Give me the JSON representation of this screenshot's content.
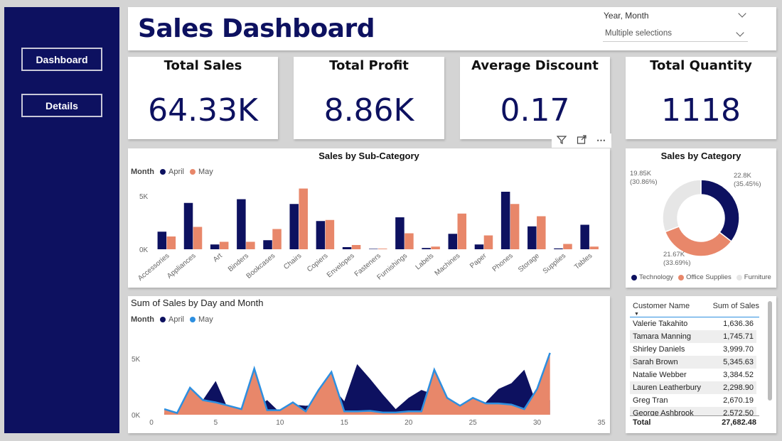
{
  "nav": {
    "dashboard": "Dashboard",
    "details": "Details"
  },
  "header": {
    "title": "Sales Dashboard"
  },
  "slicer": {
    "label": "Year, Month",
    "value": "Multiple selections"
  },
  "kpis": [
    {
      "title": "Total Sales",
      "value": "64.33K"
    },
    {
      "title": "Total Profit",
      "value": "8.86K"
    },
    {
      "title": "Average Discount",
      "value": "0.17"
    },
    {
      "title": "Total Quantity",
      "value": "1118"
    }
  ],
  "colors": {
    "navy": "#0d1160",
    "orange": "#e8876a",
    "blue": "#2d8fe0",
    "gray": "#e6e6e6"
  },
  "chart_data": [
    {
      "type": "bar",
      "title": "Sales by Sub-Category",
      "legend_title": "Month",
      "categories": [
        "Accessories",
        "Appliances",
        "Art",
        "Binders",
        "Bookcases",
        "Chairs",
        "Copiers",
        "Envelopes",
        "Fasteners",
        "Furnishings",
        "Labels",
        "Machines",
        "Paper",
        "Phones",
        "Storage",
        "Supplies",
        "Tables"
      ],
      "series": [
        {
          "name": "April",
          "values": [
            1650,
            4350,
            450,
            4700,
            850,
            4250,
            2650,
            200,
            40,
            3000,
            120,
            1450,
            450,
            5400,
            2150,
            80,
            2300
          ]
        },
        {
          "name": "May",
          "values": [
            1200,
            2100,
            700,
            700,
            1900,
            5700,
            2750,
            400,
            60,
            1500,
            250,
            3350,
            1300,
            4250,
            3100,
            500,
            250
          ]
        }
      ],
      "yticks": [
        "0K",
        "5K"
      ],
      "ylim": [
        0,
        6000
      ],
      "legend_position": "top-left"
    },
    {
      "type": "pie",
      "title": "Sales by Category",
      "slices": [
        {
          "name": "Technology",
          "value": 22.8,
          "label": "22.8K",
          "pct": "(35.45%)"
        },
        {
          "name": "Office Supplies",
          "value": 21.67,
          "label": "21.67K",
          "pct": "(33.69%)"
        },
        {
          "name": "Furniture",
          "value": 19.85,
          "label": "19.85K",
          "pct": "(30.86%)"
        }
      ],
      "legend_position": "bottom"
    },
    {
      "type": "area",
      "title": "Sum of Sales by Day and Month",
      "legend_title": "Month",
      "x": [
        1,
        2,
        3,
        4,
        5,
        6,
        7,
        8,
        9,
        10,
        11,
        12,
        13,
        14,
        15,
        16,
        17,
        18,
        19,
        20,
        21,
        22,
        23,
        24,
        25,
        26,
        27,
        28,
        29,
        30,
        31
      ],
      "series": [
        {
          "name": "April",
          "values": [
            200,
            100,
            1500,
            1300,
            3000,
            400,
            300,
            500,
            1300,
            200,
            900,
            800,
            900,
            2600,
            1200,
            4500,
            3200,
            1800,
            500,
            1500,
            2200,
            1800,
            900,
            500,
            300,
            1100,
            2300,
            2800,
            4000,
            800,
            1300
          ]
        },
        {
          "name": "May",
          "values": [
            500,
            150,
            2400,
            1300,
            1100,
            800,
            500,
            4100,
            400,
            400,
            1100,
            300,
            2200,
            3800,
            300,
            300,
            350,
            200,
            200,
            300,
            300,
            4000,
            1500,
            800,
            1500,
            1000,
            1000,
            900,
            500,
            2300,
            5500
          ]
        }
      ],
      "xticks": [
        "0",
        "5",
        "10",
        "15",
        "20",
        "25",
        "30",
        "35"
      ],
      "yticks": [
        "0K",
        "5K"
      ],
      "xlim": [
        0,
        35
      ],
      "ylim": [
        0,
        6000
      ],
      "legend_position": "top-left"
    }
  ],
  "table": {
    "headers": [
      "Customer Name",
      "Sum of Sales"
    ],
    "rows": [
      [
        "Valerie Takahito",
        "1,636.36"
      ],
      [
        "Tamara Manning",
        "1,745.71"
      ],
      [
        "Shirley Daniels",
        "3,999.70"
      ],
      [
        "Sarah Brown",
        "5,345.63"
      ],
      [
        "Natalie Webber",
        "3,384.52"
      ],
      [
        "Lauren Leatherbury",
        "2,298.90"
      ],
      [
        "Greg Tran",
        "2,670.19"
      ],
      [
        "George Ashbrook",
        "2,572.50"
      ]
    ],
    "total_label": "Total",
    "total_value": "27,682.48"
  }
}
